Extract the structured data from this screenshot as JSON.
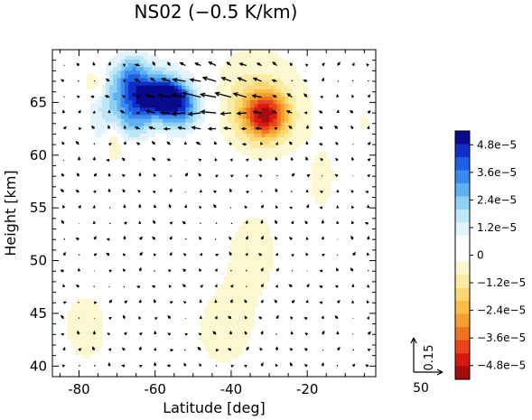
{
  "chart_data": {
    "type": "heatmap",
    "title": "NS02 (−0.5 K/km)",
    "xlabel": "Latitude [deg]",
    "ylabel": "Height [km]",
    "xlim": [
      -87,
      -2
    ],
    "ylim": [
      39,
      70
    ],
    "xticks": [
      -80,
      -60,
      -40,
      -20
    ],
    "yticks": [
      40,
      45,
      50,
      55,
      60,
      65
    ],
    "grid": false,
    "colorbar": {
      "tick_labels": [
        "4.8e−5",
        "3.6e−5",
        "2.4e−5",
        "1.2e−5",
        "0",
        "−1.2e−5",
        "−2.4e−5",
        "−3.6e−5",
        "−4.8e−5"
      ],
      "tick_values": [
        4.8e-05,
        3.6e-05,
        2.4e-05,
        1.2e-05,
        0,
        -1.2e-05,
        -2.4e-05,
        -3.6e-05,
        -4.8e-05
      ],
      "range": [
        -5.4e-05,
        5.4e-05
      ],
      "colors": [
        "#0a0a8c",
        "#0f2fc8",
        "#1f5fe6",
        "#3b8bee",
        "#5fb2f2",
        "#8fd0f4",
        "#bde6f6",
        "#e2f4fa",
        "#ffffff",
        "#ffffff",
        "#fbf7cf",
        "#fbeaa1",
        "#fbd874",
        "#f8bd48",
        "#f59d2e",
        "#ef7220",
        "#e8431a",
        "#d71912",
        "#a30d0d"
      ]
    },
    "reference_vector": {
      "horizontal_label": "50",
      "vertical_label": "0.15"
    },
    "field_blobs": [
      {
        "lat": -58,
        "z": 65.6,
        "sx": 4,
        "sy": 1.0,
        "v": 5e-05
      },
      {
        "lat": -62,
        "z": 66.0,
        "sx": 8,
        "sy": 2.2,
        "v": 2.6e-05
      },
      {
        "lat": -66,
        "z": 67.5,
        "sx": 2.5,
        "sy": 1.6,
        "v": 1.8e-05
      },
      {
        "lat": -53,
        "z": 64.2,
        "sx": 4,
        "sy": 1.3,
        "v": 2.4e-05
      },
      {
        "lat": -65,
        "z": 63.5,
        "sx": 3,
        "sy": 1.4,
        "v": 1.6e-05
      },
      {
        "lat": -72,
        "z": 64.5,
        "sx": 4,
        "sy": 3.0,
        "v": 9e-06
      },
      {
        "lat": -31,
        "z": 63.8,
        "sx": 4,
        "sy": 1.5,
        "v": -4.2e-05
      },
      {
        "lat": -34,
        "z": 65.0,
        "sx": 8,
        "sy": 3.0,
        "v": -1.2e-05
      },
      {
        "lat": -76,
        "z": 66.8,
        "sx": 2,
        "sy": 1.0,
        "v": -1.6e-05
      },
      {
        "lat": -71,
        "z": 61.0,
        "sx": 1.5,
        "sy": 1.2,
        "v": -1.6e-05
      },
      {
        "lat": -80,
        "z": 58.0,
        "sx": 6,
        "sy": 5.0,
        "v": 6e-06
      },
      {
        "lat": -50,
        "z": 56.0,
        "sx": 8,
        "sy": 5.0,
        "v": 4e-06
      },
      {
        "lat": -35,
        "z": 51.0,
        "sx": 5,
        "sy": 3.0,
        "v": -6e-06
      },
      {
        "lat": -42,
        "z": 44.0,
        "sx": 6,
        "sy": 3.0,
        "v": -6e-06
      },
      {
        "lat": -60,
        "z": 47.0,
        "sx": 8,
        "sy": 3.0,
        "v": 3.5e-06
      },
      {
        "lat": -78,
        "z": 44.0,
        "sx": 5,
        "sy": 3.0,
        "v": -5e-06
      },
      {
        "lat": -8,
        "z": 49.0,
        "sx": 5,
        "sy": 6.0,
        "v": 5e-06
      },
      {
        "lat": -15,
        "z": 57.0,
        "sx": 5,
        "sy": 4.0,
        "v": -4e-06
      },
      {
        "lat": -20,
        "z": 42.0,
        "sx": 6,
        "sy": 3.0,
        "v": 3e-06
      },
      {
        "lat": -5,
        "z": 63.0,
        "sx": 3,
        "sy": 3.0,
        "v": -3e-06
      }
    ],
    "vector_flow": {
      "lat_start": -84,
      "lat_end": -4,
      "lat_step": 4,
      "z_start": 40,
      "z_end": 68.5,
      "z_step": 1.5,
      "strong_jet": {
        "center_lat": -46,
        "center_z": 65.3,
        "lat_sigma": 12,
        "z_sigma": 2.2,
        "amp_u": -3.0
      },
      "background_v": 0.3
    }
  }
}
